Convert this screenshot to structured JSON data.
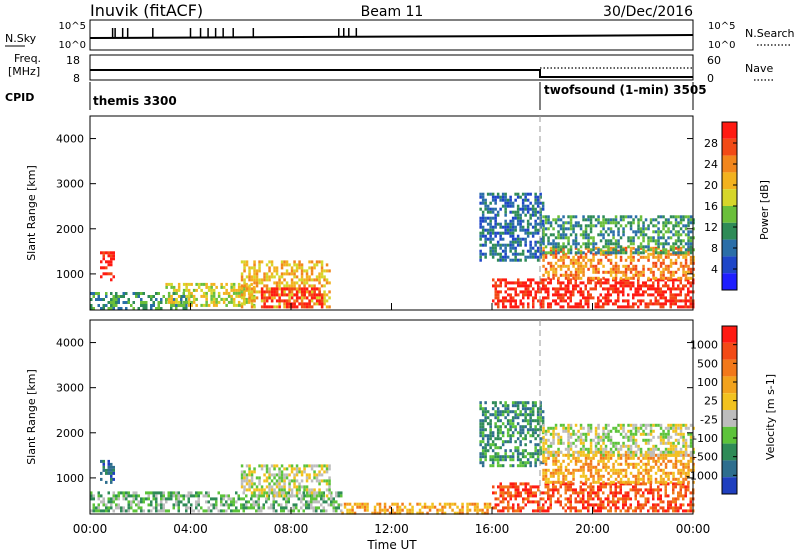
{
  "header": {
    "station": "Inuvik (fitACF)",
    "beam": "Beam 11",
    "date": "30/Dec/2016"
  },
  "top_panels": {
    "sky": {
      "left_label": "N.Sky",
      "left_ticks": [
        "10^5",
        "10^0"
      ],
      "right_label": "N.Search",
      "right_ticks": [
        "10^5",
        "10^0"
      ]
    },
    "freq": {
      "left_label_1": "Freq.",
      "left_label_2": "[MHz]",
      "left_ticks": [
        "18",
        "8"
      ],
      "right_label": "Nave",
      "right_ticks": [
        "60",
        "0"
      ]
    },
    "cpid": {
      "label": "CPID",
      "mode_1": "themis 3300",
      "mode_2": "twofsound (1-min) 3505"
    }
  },
  "chart_data": [
    {
      "type": "heatmap",
      "name": "power",
      "xlabel": "",
      "ylabel": "Slant Range [km]",
      "ylim": [
        200,
        4500
      ],
      "yticks": [
        "1000",
        "2000",
        "3000",
        "4000"
      ],
      "colorbar_label": "Power [dB]",
      "colorbar_ticks": [
        "28",
        "24",
        "20",
        "16",
        "12",
        "8",
        "4"
      ],
      "colors": [
        "#1f1fff",
        "#1e46c8",
        "#2a6ea8",
        "#2e8b57",
        "#6abf3a",
        "#d6d62a",
        "#f2b21f",
        "#f2861c",
        "#f24a16",
        "#ff1a12"
      ],
      "echo_regions": [
        {
          "t_start": 0.4,
          "t_end": 0.9,
          "r_start": 900,
          "r_end": 1500,
          "level": 9
        },
        {
          "t_start": 0.0,
          "t_end": 4.0,
          "r_start": 250,
          "r_end": 600,
          "level": 3
        },
        {
          "t_start": 3.0,
          "t_end": 6.5,
          "r_start": 300,
          "r_end": 800,
          "level": 5
        },
        {
          "t_start": 6.0,
          "t_end": 9.5,
          "r_start": 250,
          "r_end": 1300,
          "level": 6
        },
        {
          "t_start": 6.8,
          "t_end": 9.2,
          "r_start": 250,
          "r_end": 700,
          "level": 9
        },
        {
          "t_start": 15.5,
          "t_end": 18.0,
          "r_start": 1300,
          "r_end": 2800,
          "level": 2
        },
        {
          "t_start": 16.0,
          "t_end": 24.0,
          "r_start": 300,
          "r_end": 900,
          "level": 9
        },
        {
          "t_start": 18.0,
          "t_end": 24.0,
          "r_start": 900,
          "r_end": 1600,
          "level": 7
        },
        {
          "t_start": 18.0,
          "t_end": 24.0,
          "r_start": 1500,
          "r_end": 2300,
          "level": 3
        }
      ]
    },
    {
      "type": "heatmap",
      "name": "velocity",
      "xlabel": "Time UT",
      "ylabel": "Slant Range [km]",
      "ylim": [
        200,
        4500
      ],
      "yticks": [
        "1000",
        "2000",
        "3000",
        "4000"
      ],
      "xlim": [
        0,
        24
      ],
      "xticks": [
        "00:00",
        "04:00",
        "08:00",
        "12:00",
        "16:00",
        "20:00",
        "00:00"
      ],
      "colorbar_label": "Velocity [m s-1]",
      "colorbar_ticks": [
        "1000",
        "500",
        "100",
        "25",
        "-25",
        "-100",
        "-500",
        "-1000"
      ],
      "colors": [
        "#1f3fbf",
        "#2e6e8e",
        "#2e8b57",
        "#5cc33a",
        "#bdbdbd",
        "#f2c21f",
        "#f2a21c",
        "#f2781a",
        "#f24a16",
        "#ff1a12"
      ],
      "echo_regions": [
        {
          "t_start": 0.4,
          "t_end": 0.9,
          "r_start": 900,
          "r_end": 1400,
          "level": 1
        },
        {
          "t_start": 0.0,
          "t_end": 10.0,
          "r_start": 250,
          "r_end": 700,
          "level": 3
        },
        {
          "t_start": 6.0,
          "t_end": 9.5,
          "r_start": 600,
          "r_end": 1300,
          "level": 4
        },
        {
          "t_start": 10.0,
          "t_end": 16.0,
          "r_start": 250,
          "r_end": 450,
          "level": 6
        },
        {
          "t_start": 15.5,
          "t_end": 18.0,
          "r_start": 1300,
          "r_end": 2700,
          "level": 2
        },
        {
          "t_start": 16.0,
          "t_end": 24.0,
          "r_start": 300,
          "r_end": 900,
          "level": 8
        },
        {
          "t_start": 18.0,
          "t_end": 24.0,
          "r_start": 900,
          "r_end": 1600,
          "level": 6
        },
        {
          "t_start": 18.0,
          "t_end": 24.0,
          "r_start": 1500,
          "r_end": 2200,
          "level": 4
        }
      ]
    }
  ]
}
